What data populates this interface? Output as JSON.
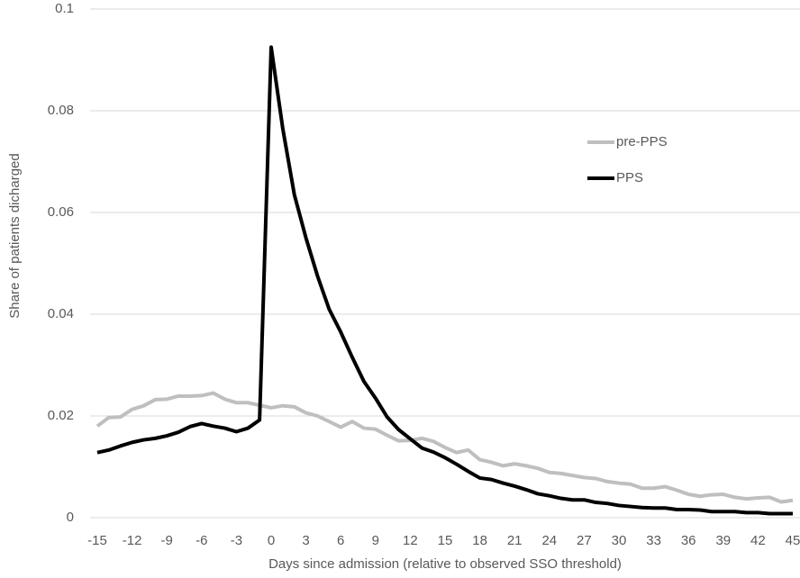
{
  "chart_data": {
    "type": "line",
    "x_label": "Days since admission (relative to observed SSO threshold)",
    "y_label": "Share of patients dicharged",
    "x": [
      -15,
      -14,
      -13,
      -12,
      -11,
      -10,
      -9,
      -8,
      -7,
      -6,
      -5,
      -4,
      -3,
      -2,
      -1,
      0,
      1,
      2,
      3,
      4,
      5,
      6,
      7,
      8,
      9,
      10,
      11,
      12,
      13,
      14,
      15,
      16,
      17,
      18,
      19,
      20,
      21,
      22,
      23,
      24,
      25,
      26,
      27,
      28,
      29,
      30,
      31,
      32,
      33,
      34,
      35,
      36,
      37,
      38,
      39,
      40,
      41,
      42,
      43,
      44,
      45
    ],
    "series": [
      {
        "name": "pre-PPS",
        "color": "#bfbfbf",
        "values": [
          0.018,
          0.0197,
          0.0198,
          0.0213,
          0.022,
          0.0232,
          0.0233,
          0.0239,
          0.0239,
          0.024,
          0.0245,
          0.0233,
          0.0226,
          0.0226,
          0.0221,
          0.0216,
          0.022,
          0.0218,
          0.0206,
          0.02,
          0.0189,
          0.0178,
          0.0189,
          0.0176,
          0.0174,
          0.0162,
          0.0151,
          0.0152,
          0.0156,
          0.015,
          0.0138,
          0.0128,
          0.0133,
          0.0114,
          0.0109,
          0.0102,
          0.0106,
          0.0102,
          0.0097,
          0.0089,
          0.0087,
          0.0083,
          0.0079,
          0.0077,
          0.0071,
          0.0068,
          0.0066,
          0.0058,
          0.0058,
          0.0061,
          0.0054,
          0.0046,
          0.0042,
          0.0045,
          0.0046,
          0.004,
          0.0037,
          0.0039,
          0.004,
          0.0031,
          0.0034
        ]
      },
      {
        "name": "PPS",
        "color": "#000000",
        "values": [
          0.0128,
          0.0133,
          0.0141,
          0.0148,
          0.0153,
          0.0156,
          0.0161,
          0.0168,
          0.0179,
          0.0185,
          0.018,
          0.0176,
          0.0169,
          0.0176,
          0.0192,
          0.0925,
          0.0765,
          0.0635,
          0.055,
          0.0475,
          0.041,
          0.0365,
          0.0315,
          0.0268,
          0.0235,
          0.0198,
          0.0173,
          0.0155,
          0.0137,
          0.0129,
          0.0118,
          0.0105,
          0.0091,
          0.0078,
          0.0075,
          0.0068,
          0.0062,
          0.0055,
          0.0047,
          0.0043,
          0.0038,
          0.0035,
          0.0035,
          0.003,
          0.0028,
          0.0024,
          0.0022,
          0.002,
          0.0019,
          0.0019,
          0.0016,
          0.0016,
          0.0015,
          0.0012,
          0.0012,
          0.0012,
          0.001,
          0.001,
          0.0008,
          0.0008,
          0.0008
        ]
      }
    ],
    "xlim": [
      -15,
      45
    ],
    "xticks": [
      -15,
      -12,
      -9,
      -6,
      -3,
      0,
      3,
      6,
      9,
      12,
      15,
      18,
      21,
      24,
      27,
      30,
      33,
      36,
      39,
      42,
      45
    ],
    "ylim": [
      0,
      0.1
    ],
    "yticks": [
      0,
      0.02,
      0.04,
      0.06,
      0.08,
      0.1
    ],
    "grid": true,
    "legend": "right"
  }
}
